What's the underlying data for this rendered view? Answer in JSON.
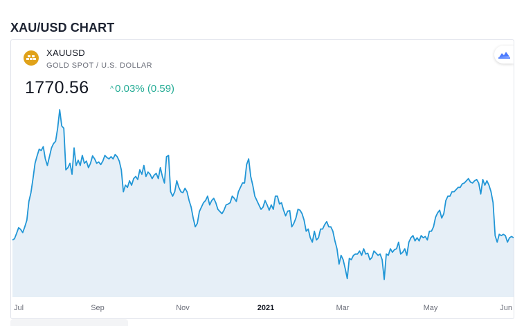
{
  "page": {
    "title": "XAU/USD CHART"
  },
  "widget": {
    "symbol": "XAUUSD",
    "description": "GOLD SPOT / U.S. DOLLAR",
    "price": "1770.56",
    "change_arrow": "^",
    "change_text": "0.03% (0.59)",
    "colors": {
      "line": "#2196d6",
      "fill": "#e6eff7",
      "positive": "#22ab94",
      "logo": "#e0a21a"
    },
    "icons": {
      "logo": "gold-bars-icon",
      "badge": "tradingview-icon"
    }
  },
  "chart_data": {
    "type": "area",
    "title": "",
    "xlabel": "",
    "ylabel": "",
    "x_ticks": [
      "Jul",
      "Sep",
      "Nov",
      "2021",
      "Mar",
      "May",
      "Jun"
    ],
    "x_tick_bold": [
      false,
      false,
      false,
      true,
      false,
      false,
      false
    ],
    "y_range": [
      1640,
      2100
    ],
    "grid": false,
    "legend": "none",
    "series": [
      {
        "values": [
          1770,
          1773,
          1785,
          1798,
          1794,
          1787,
          1800,
          1815,
          1858,
          1878,
          1910,
          1945,
          1962,
          1977,
          1974,
          1983,
          1955,
          1940,
          1960,
          1980,
          1990,
          1995,
          2025,
          2067,
          2030,
          2025,
          1930,
          1935,
          1945,
          1920,
          1980,
          1940,
          1952,
          1940,
          1963,
          1945,
          1950,
          1935,
          1945,
          1962,
          1955,
          1945,
          1948,
          1942,
          1950,
          1963,
          1958,
          1955,
          1960,
          1955,
          1965,
          1960,
          1950,
          1930,
          1880,
          1895,
          1890,
          1905,
          1895,
          1910,
          1915,
          1908,
          1930,
          1920,
          1940,
          1915,
          1925,
          1920,
          1910,
          1918,
          1922,
          1910,
          1935,
          1915,
          1900,
          1960,
          1963,
          1880,
          1870,
          1880,
          1905,
          1890,
          1880,
          1878,
          1888,
          1880,
          1860,
          1845,
          1820,
          1800,
          1808,
          1835,
          1845,
          1855,
          1860,
          1870,
          1850,
          1860,
          1865,
          1855,
          1840,
          1835,
          1830,
          1838,
          1850,
          1852,
          1855,
          1870,
          1865,
          1858,
          1880,
          1890,
          1900,
          1900,
          1942,
          1955,
          1915,
          1895,
          1870,
          1860,
          1850,
          1840,
          1845,
          1860,
          1850,
          1838,
          1850,
          1840,
          1870,
          1870,
          1852,
          1855,
          1838,
          1825,
          1836,
          1837,
          1800,
          1808,
          1820,
          1840,
          1838,
          1830,
          1815,
          1790,
          1795,
          1775,
          1765,
          1790,
          1770,
          1775,
          1795,
          1795,
          1805,
          1812,
          1800,
          1800,
          1790,
          1768,
          1750,
          1715,
          1735,
          1725,
          1705,
          1682,
          1728,
          1725,
          1735,
          1738,
          1738,
          1745,
          1735,
          1750,
          1738,
          1740,
          1725,
          1730,
          1745,
          1740,
          1735,
          1738,
          1725,
          1680,
          1738,
          1735,
          1750,
          1742,
          1748,
          1750,
          1765,
          1738,
          1742,
          1750,
          1735,
          1765,
          1775,
          1780,
          1768,
          1775,
          1768,
          1780,
          1775,
          1778,
          1770,
          1790,
          1790,
          1800,
          1822,
          1832,
          1838,
          1820,
          1830,
          1860,
          1870,
          1870,
          1880,
          1880,
          1885,
          1890,
          1890,
          1898,
          1900,
          1905,
          1910,
          1902,
          1900,
          1905,
          1908,
          1900,
          1875,
          1908,
          1895,
          1905,
          1895,
          1880,
          1855,
          1780,
          1765,
          1783,
          1780,
          1783,
          1780,
          1765,
          1775,
          1778,
          1775
        ]
      }
    ]
  }
}
